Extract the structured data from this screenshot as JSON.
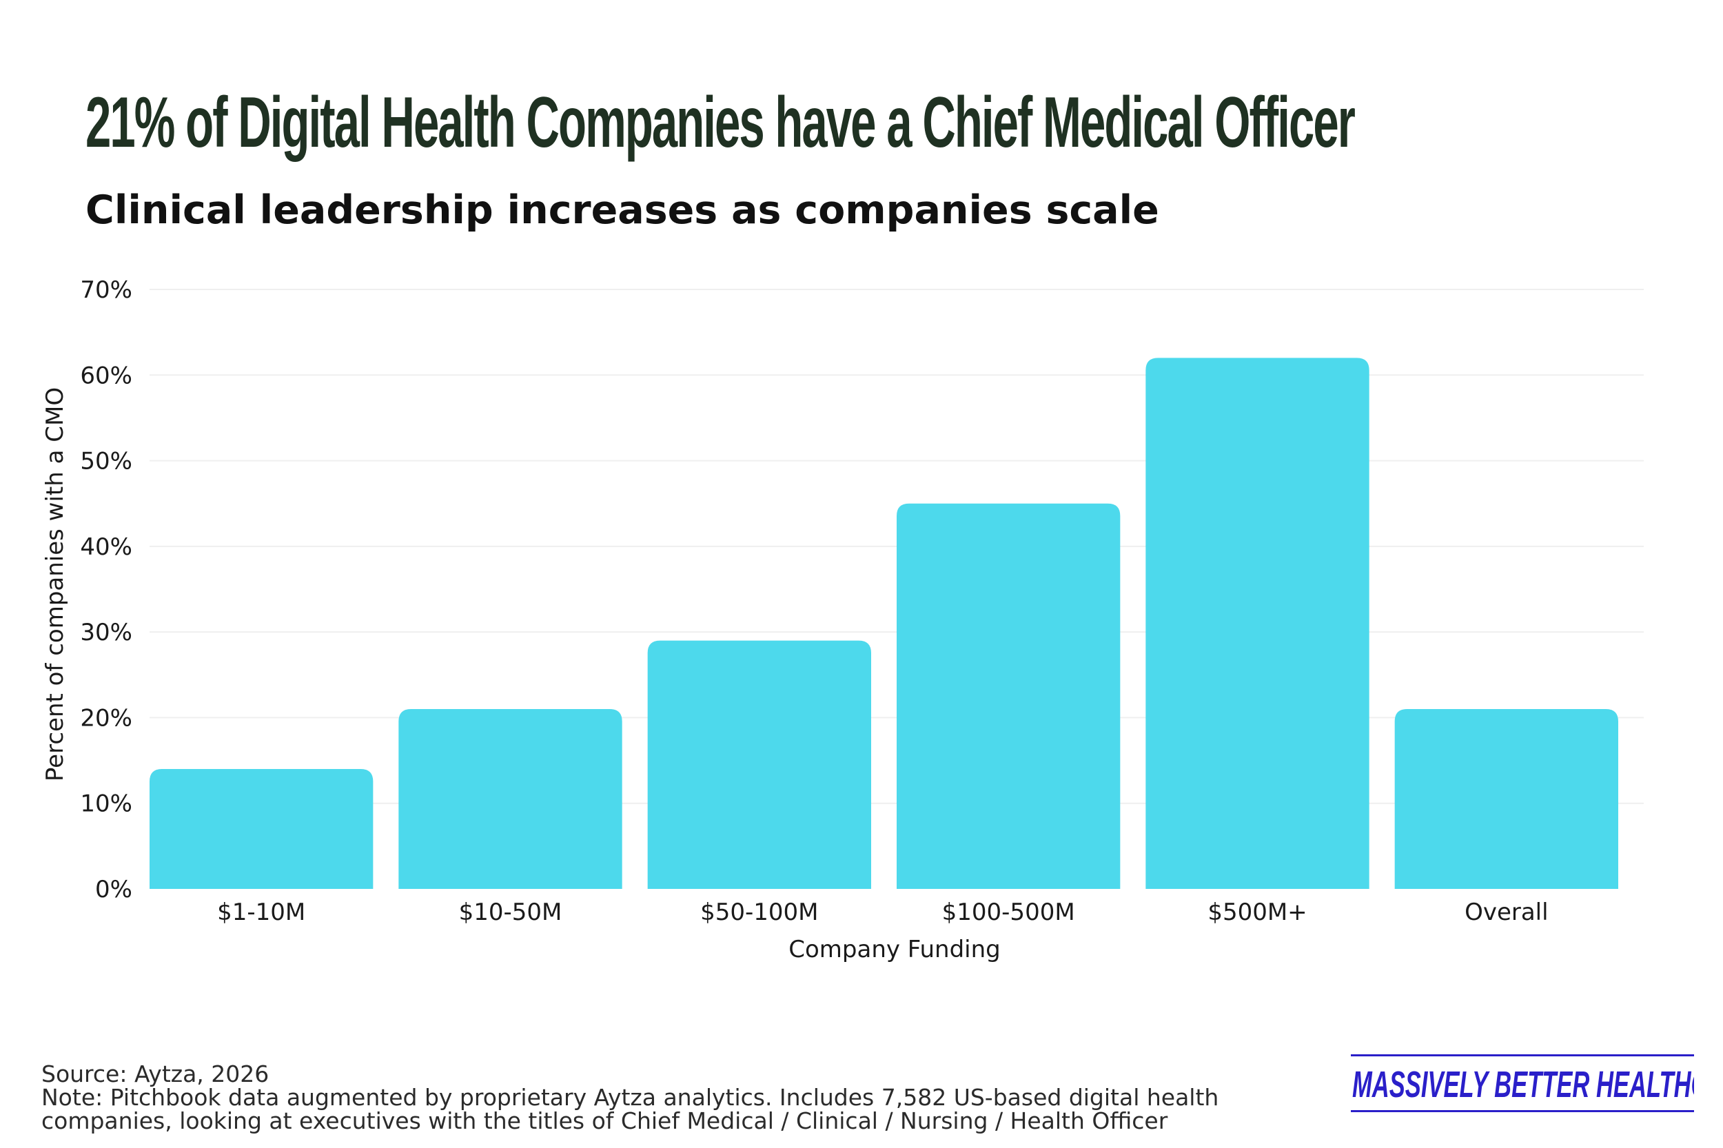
{
  "title": "21% of Digital Health Companies have a Chief Medical Officer",
  "subtitle": "Clinical leadership increases as companies scale",
  "colors": {
    "bar": "#4dd9ec",
    "grid": "#efefef",
    "title": "#1f3122",
    "brand": "#2a1fc9"
  },
  "chart_data": {
    "type": "bar",
    "categories": [
      "$1-10M",
      "$10-50M",
      "$50-100M",
      "$100-500M",
      "$500M+",
      "Overall"
    ],
    "values": [
      14,
      21,
      29,
      45,
      62,
      21
    ],
    "xlabel": "Company Funding",
    "ylabel": "Percent of companies with a CMO",
    "ylim": [
      0,
      70
    ],
    "y_ticks": [
      0,
      10,
      20,
      30,
      40,
      50,
      60,
      70
    ],
    "y_tick_labels": [
      "0%",
      "10%",
      "20%",
      "30%",
      "40%",
      "50%",
      "60%",
      "70%"
    ],
    "grid": true,
    "legend": "none"
  },
  "footer": {
    "source": "Source: Aytza, 2026",
    "note_line1": "Note: Pitchbook data augmented by proprietary Aytza analytics. Includes 7,582 US-based digital health",
    "note_line2": "companies, looking at executives with the titles of Chief Medical / Clinical / Nursing / Health Officer"
  },
  "brand": {
    "logo_text": "MASSIVELY BETTER HEALTHCARE"
  }
}
